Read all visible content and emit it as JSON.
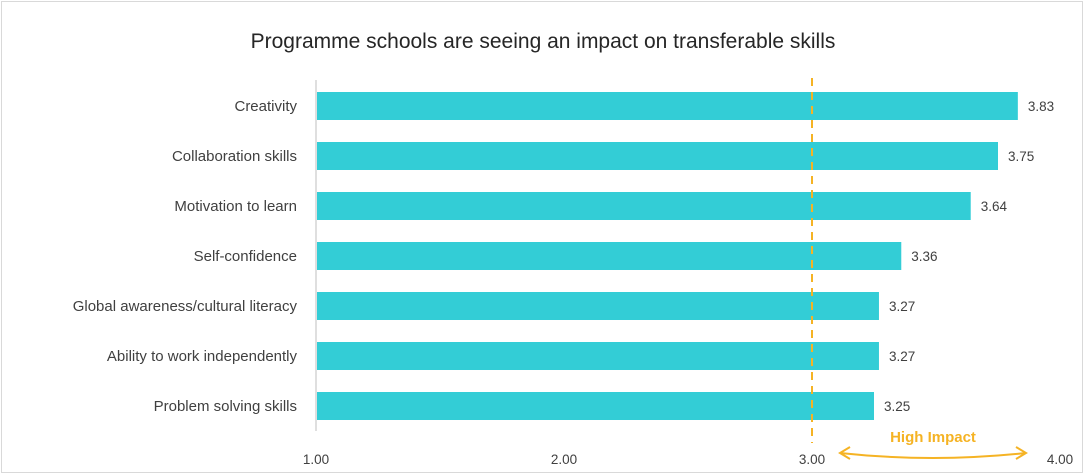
{
  "chart_data": {
    "type": "bar",
    "orientation": "horizontal",
    "title": "Programme schools are seeing an impact on transferable skills",
    "categories": [
      "Creativity",
      "Collaboration skills",
      "Motivation to learn",
      "Self-confidence",
      "Global awareness/cultural literacy",
      "Ability to work independently",
      "Problem solving skills"
    ],
    "values": [
      3.83,
      3.75,
      3.64,
      3.36,
      3.27,
      3.27,
      3.25
    ],
    "value_labels": [
      "3.83",
      "3.75",
      "3.64",
      "3.36",
      "3.27",
      "3.27",
      "3.25"
    ],
    "xlim": [
      1,
      4
    ],
    "x_ticks": [
      1,
      2,
      3,
      4
    ],
    "x_tick_labels": [
      "1.00",
      "2.00",
      "3.00",
      "4.00"
    ],
    "reference_line": 3,
    "annotation": "High Impact",
    "bar_color": "#33cdd6",
    "annotation_color": "#f5b324",
    "grid": false
  }
}
